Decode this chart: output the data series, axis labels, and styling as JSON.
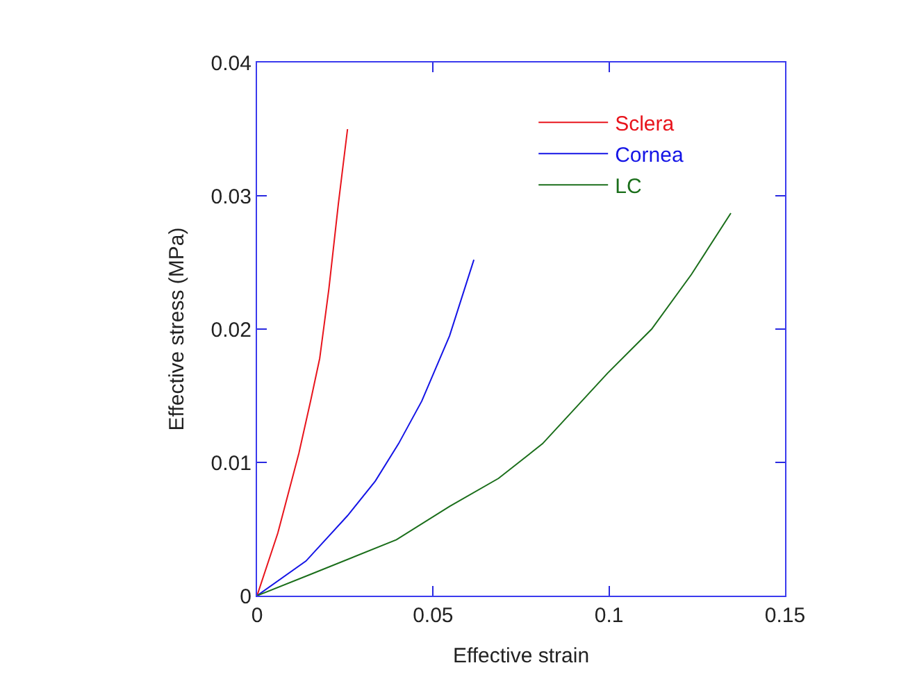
{
  "chart_data": {
    "type": "line",
    "xlabel": "Effective strain",
    "ylabel": "Effective stress (MPa)",
    "xlim": [
      0,
      0.15
    ],
    "xticks": [
      0,
      0.05,
      0.1,
      0.15
    ],
    "ylim": [
      0,
      0.04
    ],
    "yticks": [
      0,
      0.01,
      0.02,
      0.03,
      0.04
    ],
    "legend": "top right",
    "marker": "none",
    "line_style": "solid",
    "series": [
      {
        "name": "Sclera",
        "color": "#e8141c",
        "x": [
          0,
          0.0059,
          0.0119,
          0.0152,
          0.0178,
          0.0204,
          0.0231,
          0.0257
        ],
        "values": [
          0,
          0.0047,
          0.0107,
          0.0146,
          0.0178,
          0.023,
          0.0294,
          0.035
        ]
      },
      {
        "name": "Cornea",
        "color": "#1414e6",
        "x": [
          0,
          0.0139,
          0.0257,
          0.0336,
          0.0402,
          0.0468,
          0.0547,
          0.0616
        ],
        "values": [
          0,
          0.0026,
          0.006,
          0.0086,
          0.0114,
          0.0146,
          0.0195,
          0.0252
        ]
      },
      {
        "name": "LC",
        "color": "#1a6e1a",
        "x": [
          0,
          0.0152,
          0.0396,
          0.0547,
          0.0686,
          0.0811,
          0.0996,
          0.1121,
          0.1234,
          0.1346
        ],
        "values": [
          0,
          0.0016,
          0.0042,
          0.0067,
          0.0088,
          0.0114,
          0.0167,
          0.02,
          0.0241,
          0.0287
        ]
      }
    ]
  }
}
